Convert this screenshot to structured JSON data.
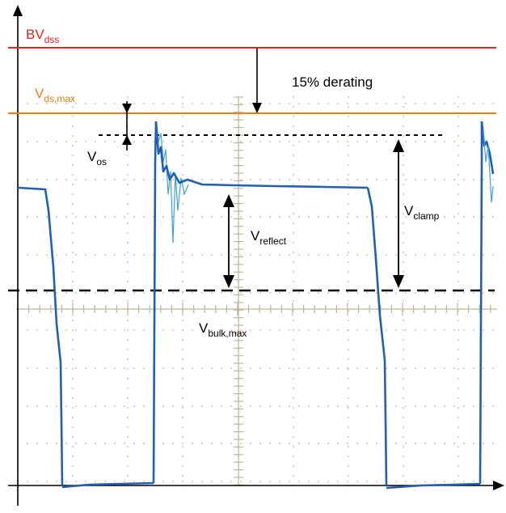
{
  "labels": {
    "bvdss": {
      "main": "BV",
      "sub": "dss"
    },
    "vdsmax": {
      "main": "V",
      "sub": "ds,max"
    },
    "derating": "15% derating",
    "vos": {
      "main": "V",
      "sub": "os"
    },
    "vreflect": {
      "main": "V",
      "sub": "reflect"
    },
    "vclamp": {
      "main": "V",
      "sub": "clamp"
    },
    "vbulk": {
      "main": "V",
      "sub": "bulk,max"
    }
  },
  "colors": {
    "bvdss_line": "#e32219",
    "vdsmax_line": "#f07c12",
    "waveform": "#1f5fb4",
    "waveform_light": "#3fa0d8",
    "grid": "#bfb59a",
    "axis": "#000000"
  }
}
